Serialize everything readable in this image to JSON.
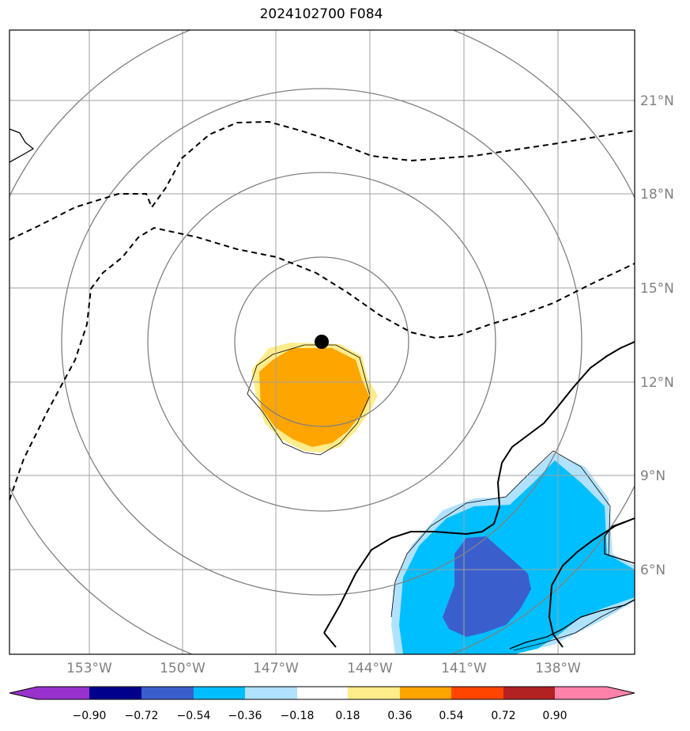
{
  "title": "2024102700 F084",
  "map": {
    "lat_labels": [
      "21°N",
      "18°N",
      "15°N",
      "12°N",
      "9°N",
      "6°N"
    ],
    "lon_labels": [
      "153°W",
      "150°W",
      "147°W",
      "144°W",
      "141°W",
      "138°W"
    ],
    "gridline_color": "#a0a0a0",
    "range_ring_color": "#808080",
    "storm_center_marker": "black-dot"
  },
  "colorbar": {
    "ticks": [
      "−0.90",
      "−0.72",
      "−0.54",
      "−0.36",
      "−0.18",
      "0.18",
      "0.36",
      "0.54",
      "0.72",
      "0.90"
    ],
    "colors": [
      "#9932cc",
      "#00008b",
      "#3a5fcd",
      "#00bfff",
      "#b0e2ff",
      "#ffffff",
      "#ffec8b",
      "#ffa500",
      "#ff4500",
      "#b22222",
      "#ff82ab"
    ]
  }
}
